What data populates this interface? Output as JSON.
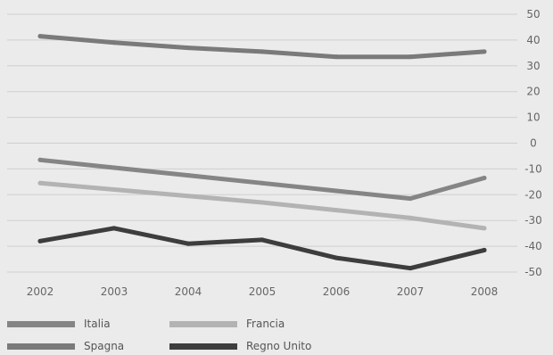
{
  "chart_data": {
    "type": "line",
    "x": [
      "2002",
      "2003",
      "2004",
      "2005",
      "2006",
      "2007",
      "2008"
    ],
    "y_ticks": [
      "50",
      "40",
      "30",
      "20",
      "10",
      "0",
      "-10",
      "-20",
      "-30",
      "-40",
      "-50"
    ],
    "ylim": [
      -50,
      50
    ],
    "grid": true,
    "legend_position": "bottom",
    "series": [
      {
        "name": "Italia",
        "color": "#858585",
        "values": [
          -6.5,
          -9.5,
          -12.5,
          -15.5,
          -18.5,
          -21.5,
          -13.5
        ]
      },
      {
        "name": "Francia",
        "color": "#b3b3b3",
        "values": [
          -15.5,
          -18,
          -20.5,
          -23,
          -26,
          -29,
          -33
        ]
      },
      {
        "name": "Spagna",
        "color": "#7a7a7a",
        "values": [
          41.5,
          39,
          37,
          35.5,
          33.5,
          33.5,
          35.5
        ]
      },
      {
        "name": "Regno Unito",
        "color": "#3d3d3d",
        "values": [
          -38,
          -33,
          -39,
          -37.5,
          -44.5,
          -48.5,
          -41.5
        ]
      }
    ]
  }
}
